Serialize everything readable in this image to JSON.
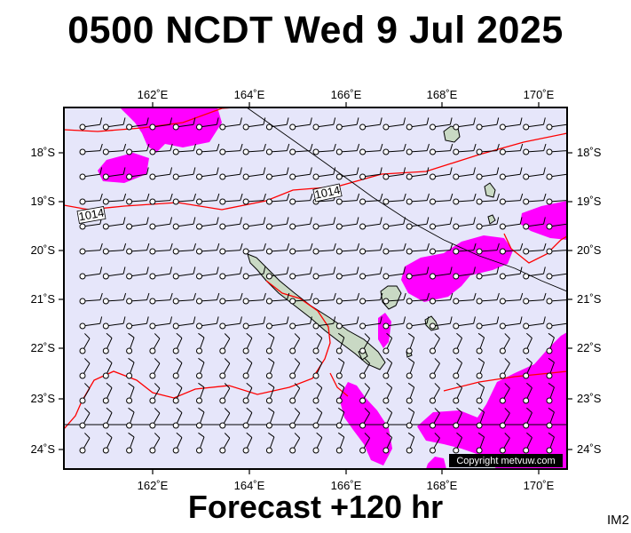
{
  "title": "0500 NCDT Wed 9 Jul 2025",
  "subtitle": "Forecast +120 hr",
  "image_label": "IM2",
  "copyright": "Copyright metvuw.com",
  "map": {
    "lon_labels": [
      "162˚E",
      "164˚E",
      "166˚E",
      "168˚E",
      "170˚E"
    ],
    "lat_labels": [
      "18˚S",
      "19˚S",
      "20˚S",
      "21˚S",
      "22˚S",
      "23˚S",
      "24˚S"
    ],
    "isobar_labels": [
      "1014",
      "1014"
    ],
    "colors": {
      "sea": "#e6e6fa",
      "precip": "#ff00ff",
      "isobar": "#ff0000",
      "land": "#c9d9c4",
      "wind": "#000000"
    }
  }
}
